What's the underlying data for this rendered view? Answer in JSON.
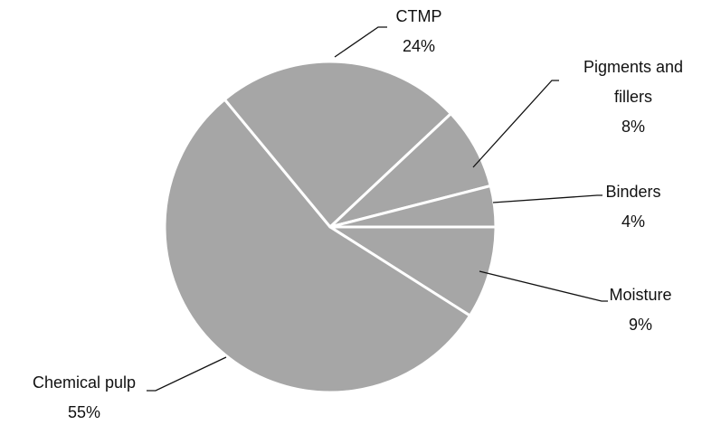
{
  "chart_data": {
    "type": "pie",
    "categories": [
      "Moisture",
      "Chemical pulp",
      "CTMP",
      "Pigments and fillers",
      "Binders"
    ],
    "values": [
      9,
      55,
      24,
      8,
      4
    ],
    "value_labels": [
      "9%",
      "55%",
      "24%",
      "8%",
      "4%"
    ],
    "color": "#a6a6a6"
  }
}
